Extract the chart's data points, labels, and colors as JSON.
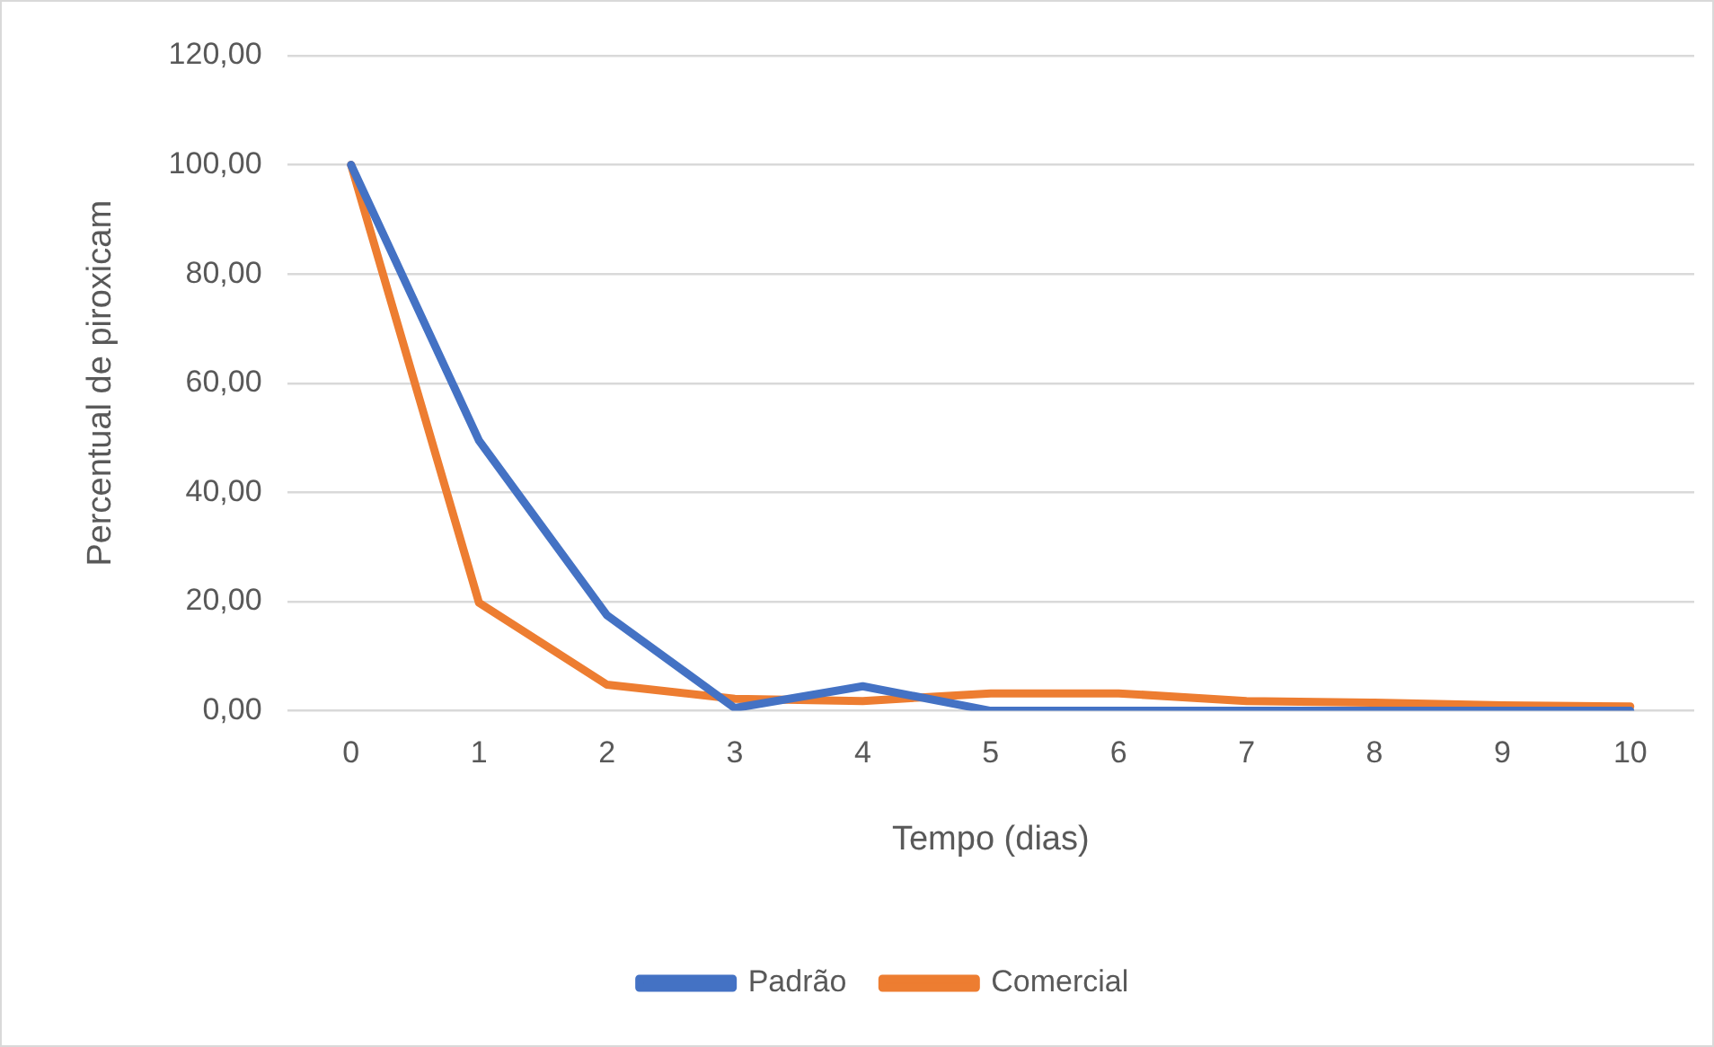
{
  "chart_data": {
    "type": "line",
    "xlabel": "Tempo (dias)",
    "ylabel": "Percentual de piroxicam",
    "categories": [
      "0",
      "1",
      "2",
      "3",
      "4",
      "5",
      "6",
      "7",
      "8",
      "9",
      "10"
    ],
    "series": [
      {
        "name": "Padrão",
        "color": "#4472c4",
        "values": [
          100,
          49.5,
          17.5,
          0.5,
          4.5,
          0,
          0,
          0,
          0,
          0,
          0
        ]
      },
      {
        "name": "Comercial",
        "color": "#ed7d31",
        "values": [
          100,
          19.8,
          4.8,
          2.2,
          1.8,
          3.2,
          3.2,
          1.8,
          1.5,
          1.0,
          0.8
        ]
      }
    ],
    "ylim": [
      0,
      120
    ],
    "yticks": [
      {
        "value": 0,
        "label": "0,00"
      },
      {
        "value": 20,
        "label": "20,00"
      },
      {
        "value": 40,
        "label": "40,00"
      },
      {
        "value": 60,
        "label": "60,00"
      },
      {
        "value": 80,
        "label": "80,00"
      },
      {
        "value": 100,
        "label": "100,00"
      },
      {
        "value": 120,
        "label": "120,00"
      }
    ],
    "grid": "y",
    "legend": "bottom",
    "marker": "none",
    "line_style": "solid"
  }
}
